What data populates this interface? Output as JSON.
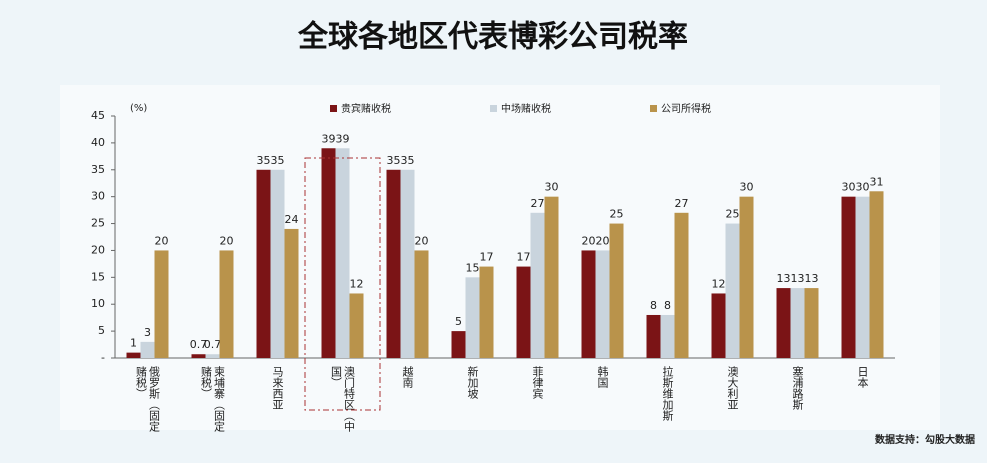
{
  "chart_data": {
    "type": "bar",
    "title": "全球各地区代表博彩公司税率",
    "y_label": "(%)",
    "source": "数据支持：勾股大数据",
    "categories": [
      "俄罗斯（固定赌税）",
      "柬埔寨（固定赌税）",
      "马来西亚",
      "澳门特区（中国）",
      "越南",
      "新加坡",
      "菲律宾",
      "韩国",
      "拉斯维加斯",
      "澳大利亚",
      "塞浦路斯",
      "日本"
    ],
    "series": [
      {
        "name": "贵宾赌收税",
        "color": "#7b1416",
        "values": [
          1,
          0.7,
          35,
          39,
          35,
          5,
          17,
          20,
          8,
          12,
          13,
          30
        ]
      },
      {
        "name": "中场赌收税",
        "color": "#c9d4dd",
        "values": [
          3,
          0.7,
          35,
          39,
          35,
          15,
          27,
          20,
          8,
          25,
          13,
          30
        ]
      },
      {
        "name": "公司所得税",
        "color": "#b9934b",
        "values": [
          20,
          20,
          24,
          12,
          20,
          17,
          30,
          25,
          27,
          30,
          13,
          31
        ]
      }
    ],
    "ylim": [
      0,
      45
    ],
    "yticks": [
      {
        "value": 0,
        "label": "-"
      },
      5,
      10,
      15,
      20,
      25,
      30,
      35,
      40,
      45
    ]
  }
}
